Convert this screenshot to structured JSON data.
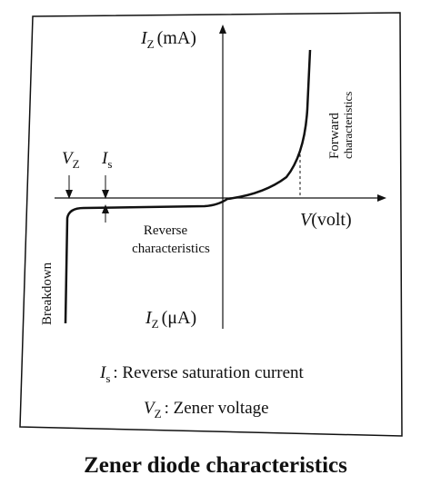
{
  "axis_labels": {
    "iz_ma": {
      "symbol": "I",
      "subscript": "Z",
      "unit": "(mA)"
    },
    "iz_ua": {
      "symbol": "I",
      "subscript": "Z",
      "unit": "(μA)"
    },
    "v": {
      "symbol": "V",
      "unit": "(volt)"
    }
  },
  "markers": {
    "vz": {
      "symbol": "V",
      "subscript": "Z"
    },
    "is": {
      "symbol": "I",
      "subscript": "s"
    }
  },
  "region_labels": {
    "forward": [
      "Forward",
      "characteristics"
    ],
    "reverse": [
      "Reverse",
      "characteristics"
    ],
    "breakdown": "Breakdown"
  },
  "legend": [
    {
      "symbol": "I",
      "subscript": "s",
      "text": ": Reverse saturation current"
    },
    {
      "symbol": "V",
      "subscript": "Z",
      "text": ": Zener voltage"
    }
  ],
  "caption": "Zener diode characteristics"
}
